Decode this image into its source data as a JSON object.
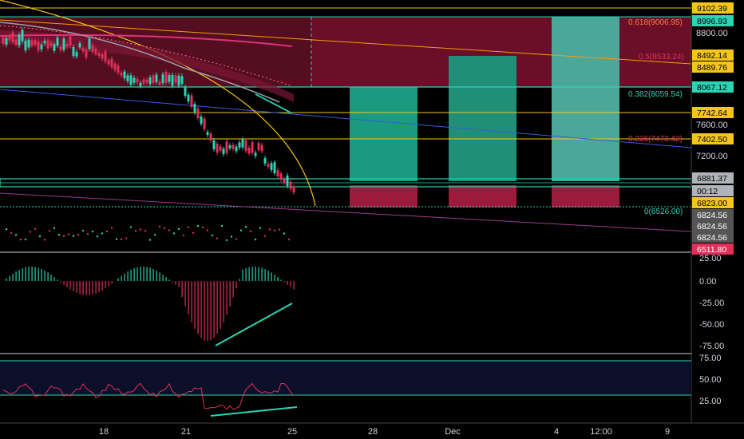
{
  "price_axis": {
    "labels": [
      "9102.39",
      "8996.93",
      "8800.00",
      "8492.14",
      "8489.76",
      "8067.12",
      "7742.64",
      "7600.00",
      "7402.50",
      "7200.00",
      "6881.37",
      "00:12",
      "6823.00",
      "6824.56",
      "6824.56",
      "6824.56",
      "6511.80"
    ],
    "tags": [
      {
        "text": "9102.39",
        "bg": "#f5c518",
        "fg": "#000000"
      },
      {
        "text": "8996.93",
        "bg": "#2ad4b4",
        "fg": "#000000"
      },
      {
        "text": "8492.14",
        "bg": "#f5c518",
        "fg": "#000000"
      },
      {
        "text": "8489.76",
        "bg": "#f5c518",
        "fg": "#000000"
      },
      {
        "text": "8067.12",
        "bg": "#2ad4b4",
        "fg": "#000000"
      },
      {
        "text": "7742.64",
        "bg": "#f5c518",
        "fg": "#000000"
      },
      {
        "text": "7402.50",
        "bg": "#f5c518",
        "fg": "#000000"
      },
      {
        "text": "6881.37",
        "bg": "#b0b3b8",
        "fg": "#000000"
      },
      {
        "text": "00:12",
        "bg": "#b0b3b8",
        "fg": "#000000"
      },
      {
        "text": "6823.00",
        "bg": "#f5c518",
        "fg": "#000000"
      },
      {
        "text": "6824.56",
        "bg": "#555555",
        "fg": "#ffffff"
      },
      {
        "text": "6824.56",
        "bg": "#555555",
        "fg": "#ffffff"
      },
      {
        "text": "6824.56",
        "bg": "#555555",
        "fg": "#ffffff"
      },
      {
        "text": "6511.80",
        "bg": "#e0305a",
        "fg": "#ffffff"
      }
    ],
    "plain": [
      "8800.00",
      "7600.00",
      "7200.00"
    ]
  },
  "fib_levels": [
    {
      "label": "0.618(9006.95)",
      "color": "#ff7a45"
    },
    {
      "label": "0.5(8533.24)",
      "color": "#e0305a"
    },
    {
      "label": "0.382(8059.54)",
      "color": "#2ad4b4"
    },
    {
      "label": "0.236(7473.42)",
      "color": "#e0305a"
    },
    {
      "label": "0(6526.00)",
      "color": "#2ad4b4"
    }
  ],
  "macd_axis": [
    "25.00",
    "0.00",
    "-25.00",
    "-50.00",
    "-75.00"
  ],
  "rsi_axis": [
    "75.00",
    "50.00",
    "25.00"
  ],
  "time_axis": [
    "18",
    "21",
    "25",
    "28",
    "Dec",
    "4",
    "12:00",
    "9"
  ],
  "colors": {
    "bg": "#000000",
    "up": "#2ad4b4",
    "down": "#e0305a",
    "yellow": "#f5c518",
    "orange": "#f39c12",
    "grid": "#1e1e1e"
  }
}
